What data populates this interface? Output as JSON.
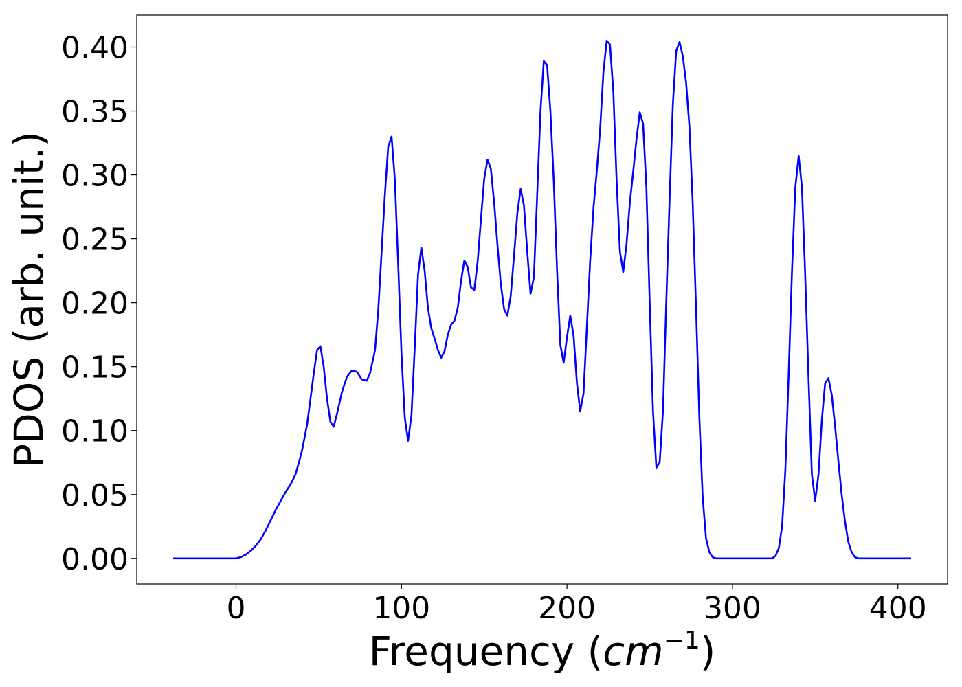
{
  "chart_data": {
    "type": "line",
    "title": "",
    "xlabel": "Frequency",
    "xlabel_unit": "cm",
    "xlabel_unit_exponent": "−1",
    "ylabel": "PDOS (arb. unit.)",
    "xlim": [
      -60,
      430
    ],
    "ylim": [
      -0.02,
      0.425
    ],
    "xticks": [
      0,
      100,
      200,
      300,
      400
    ],
    "xtick_labels": [
      "0",
      "100",
      "200",
      "300",
      "400"
    ],
    "yticks": [
      0.0,
      0.05,
      0.1,
      0.15,
      0.2,
      0.25,
      0.3,
      0.35,
      0.4
    ],
    "ytick_labels": [
      "0.00",
      "0.05",
      "0.10",
      "0.15",
      "0.20",
      "0.25",
      "0.30",
      "0.35",
      "0.40"
    ],
    "grid": false,
    "legend": "none",
    "series": [
      {
        "color": "#0000ff",
        "points": [
          [
            -38,
            0.0
          ],
          [
            -20,
            0.0
          ],
          [
            0,
            0.0
          ],
          [
            3,
            0.001
          ],
          [
            6,
            0.003
          ],
          [
            9,
            0.006
          ],
          [
            12,
            0.01
          ],
          [
            15,
            0.015
          ],
          [
            18,
            0.022
          ],
          [
            21,
            0.03
          ],
          [
            24,
            0.038
          ],
          [
            27,
            0.045
          ],
          [
            30,
            0.052
          ],
          [
            33,
            0.058
          ],
          [
            36,
            0.066
          ],
          [
            38,
            0.075
          ],
          [
            40,
            0.085
          ],
          [
            43,
            0.105
          ],
          [
            45,
            0.125
          ],
          [
            47,
            0.145
          ],
          [
            49,
            0.163
          ],
          [
            51,
            0.166
          ],
          [
            53,
            0.15
          ],
          [
            55,
            0.125
          ],
          [
            57,
            0.107
          ],
          [
            59,
            0.103
          ],
          [
            61,
            0.113
          ],
          [
            64,
            0.13
          ],
          [
            67,
            0.142
          ],
          [
            70,
            0.147
          ],
          [
            73,
            0.146
          ],
          [
            76,
            0.14
          ],
          [
            79,
            0.139
          ],
          [
            81,
            0.145
          ],
          [
            84,
            0.163
          ],
          [
            86,
            0.195
          ],
          [
            88,
            0.24
          ],
          [
            90,
            0.285
          ],
          [
            92,
            0.322
          ],
          [
            94,
            0.33
          ],
          [
            96,
            0.296
          ],
          [
            98,
            0.23
          ],
          [
            100,
            0.16
          ],
          [
            102,
            0.11
          ],
          [
            104,
            0.092
          ],
          [
            106,
            0.112
          ],
          [
            108,
            0.165
          ],
          [
            110,
            0.222
          ],
          [
            112,
            0.243
          ],
          [
            114,
            0.225
          ],
          [
            116,
            0.196
          ],
          [
            118,
            0.18
          ],
          [
            120,
            0.172
          ],
          [
            122,
            0.163
          ],
          [
            124,
            0.157
          ],
          [
            126,
            0.162
          ],
          [
            128,
            0.175
          ],
          [
            130,
            0.183
          ],
          [
            132,
            0.186
          ],
          [
            134,
            0.196
          ],
          [
            136,
            0.217
          ],
          [
            138,
            0.233
          ],
          [
            140,
            0.228
          ],
          [
            142,
            0.212
          ],
          [
            144,
            0.21
          ],
          [
            146,
            0.232
          ],
          [
            148,
            0.265
          ],
          [
            150,
            0.297
          ],
          [
            152,
            0.312
          ],
          [
            154,
            0.305
          ],
          [
            156,
            0.278
          ],
          [
            158,
            0.245
          ],
          [
            160,
            0.215
          ],
          [
            162,
            0.195
          ],
          [
            164,
            0.19
          ],
          [
            166,
            0.205
          ],
          [
            168,
            0.237
          ],
          [
            170,
            0.27
          ],
          [
            172,
            0.289
          ],
          [
            174,
            0.276
          ],
          [
            176,
            0.24
          ],
          [
            178,
            0.207
          ],
          [
            180,
            0.22
          ],
          [
            182,
            0.285
          ],
          [
            184,
            0.35
          ],
          [
            186,
            0.389
          ],
          [
            188,
            0.386
          ],
          [
            190,
            0.35
          ],
          [
            192,
            0.295
          ],
          [
            194,
            0.225
          ],
          [
            196,
            0.167
          ],
          [
            198,
            0.153
          ],
          [
            200,
            0.173
          ],
          [
            202,
            0.19
          ],
          [
            204,
            0.174
          ],
          [
            206,
            0.137
          ],
          [
            208,
            0.115
          ],
          [
            210,
            0.129
          ],
          [
            212,
            0.18
          ],
          [
            214,
            0.232
          ],
          [
            216,
            0.274
          ],
          [
            218,
            0.303
          ],
          [
            220,
            0.335
          ],
          [
            222,
            0.38
          ],
          [
            224,
            0.405
          ],
          [
            226,
            0.402
          ],
          [
            228,
            0.365
          ],
          [
            230,
            0.295
          ],
          [
            232,
            0.24
          ],
          [
            234,
            0.224
          ],
          [
            236,
            0.246
          ],
          [
            238,
            0.278
          ],
          [
            240,
            0.302
          ],
          [
            242,
            0.328
          ],
          [
            244,
            0.349
          ],
          [
            246,
            0.34
          ],
          [
            248,
            0.29
          ],
          [
            250,
            0.2
          ],
          [
            252,
            0.115
          ],
          [
            254,
            0.071
          ],
          [
            256,
            0.075
          ],
          [
            258,
            0.115
          ],
          [
            260,
            0.2
          ],
          [
            262,
            0.28
          ],
          [
            264,
            0.355
          ],
          [
            266,
            0.397
          ],
          [
            268,
            0.404
          ],
          [
            270,
            0.393
          ],
          [
            272,
            0.372
          ],
          [
            274,
            0.338
          ],
          [
            276,
            0.278
          ],
          [
            278,
            0.195
          ],
          [
            280,
            0.11
          ],
          [
            282,
            0.048
          ],
          [
            284,
            0.016
          ],
          [
            286,
            0.005
          ],
          [
            288,
            0.001
          ],
          [
            290,
            0.0
          ],
          [
            300,
            0.0
          ],
          [
            310,
            0.0
          ],
          [
            320,
            0.0
          ],
          [
            324,
            0.0
          ],
          [
            326,
            0.002
          ],
          [
            328,
            0.008
          ],
          [
            330,
            0.025
          ],
          [
            332,
            0.07
          ],
          [
            334,
            0.145
          ],
          [
            336,
            0.225
          ],
          [
            338,
            0.29
          ],
          [
            340,
            0.315
          ],
          [
            342,
            0.29
          ],
          [
            344,
            0.22
          ],
          [
            346,
            0.14
          ],
          [
            348,
            0.066
          ],
          [
            350,
            0.045
          ],
          [
            352,
            0.066
          ],
          [
            354,
            0.108
          ],
          [
            356,
            0.137
          ],
          [
            358,
            0.141
          ],
          [
            360,
            0.128
          ],
          [
            362,
            0.104
          ],
          [
            364,
            0.076
          ],
          [
            366,
            0.05
          ],
          [
            368,
            0.029
          ],
          [
            370,
            0.013
          ],
          [
            372,
            0.005
          ],
          [
            374,
            0.001
          ],
          [
            376,
            0.0
          ],
          [
            390,
            0.0
          ],
          [
            408,
            0.0
          ]
        ]
      }
    ]
  }
}
